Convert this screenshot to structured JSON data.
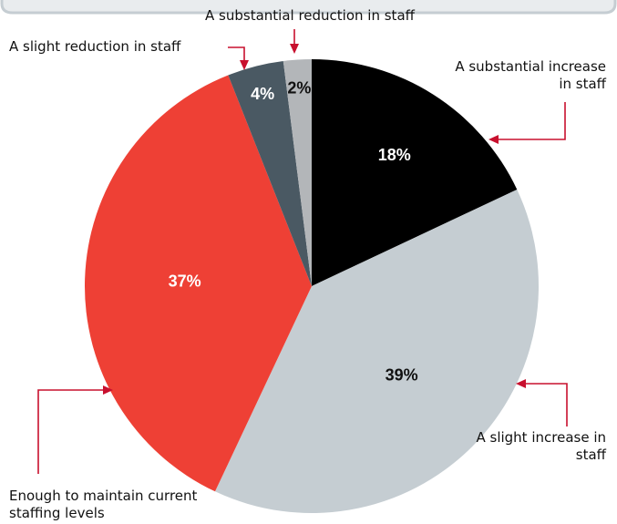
{
  "chart_data": {
    "type": "pie",
    "categories": [
      "A substantial increase in staff",
      "A slight increase in staff",
      "Enough to maintain current staffing levels",
      "A slight reduction in staff",
      "A substantial reduction in staff"
    ],
    "values": [
      18,
      39,
      37,
      4,
      2
    ],
    "value_labels": [
      "18%",
      "39%",
      "37%",
      "4%",
      "2%"
    ],
    "colors": [
      "#000000",
      "#c5cdd2",
      "#ee4035",
      "#4a5963",
      "#b3b6b9"
    ]
  }
}
